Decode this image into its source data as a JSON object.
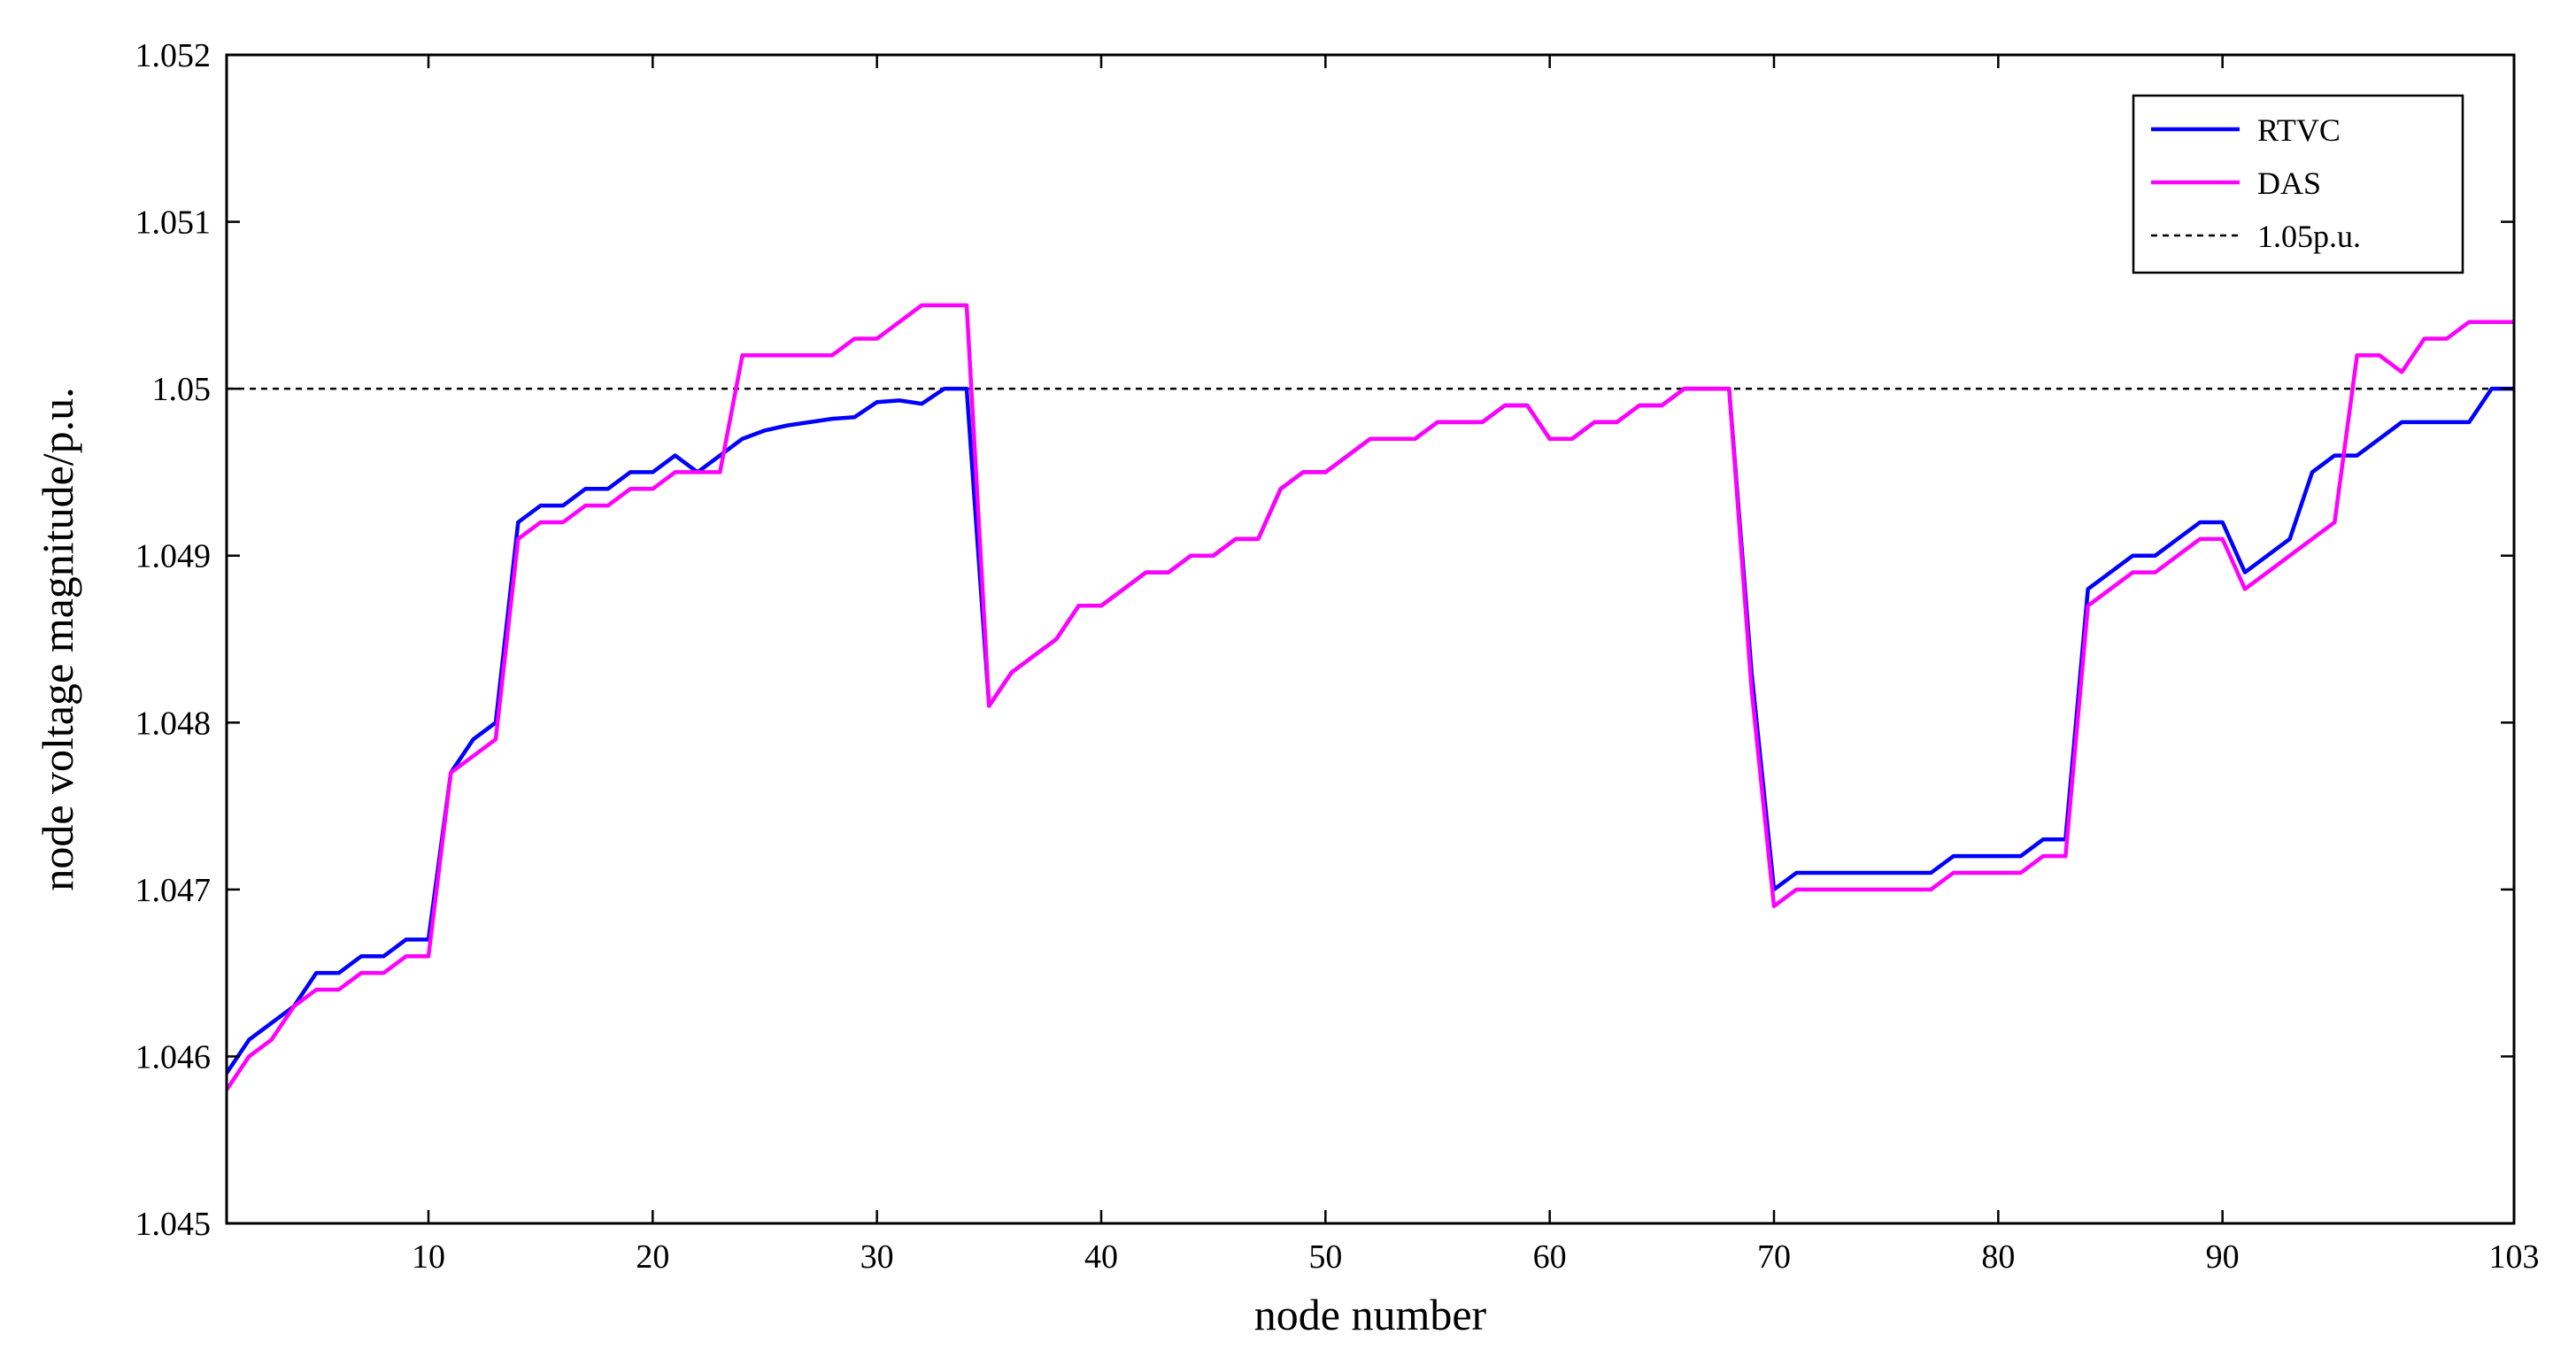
{
  "chart_data": {
    "type": "line",
    "title": "",
    "xlabel": "node number",
    "ylabel": "node voltage magnitude/p.u.",
    "xlim": [
      1,
      103
    ],
    "ylim": [
      1.045,
      1.052
    ],
    "x_ticks": [
      10,
      20,
      30,
      40,
      50,
      60,
      70,
      80,
      90,
      103
    ],
    "y_ticks": [
      "1.045",
      "1.046",
      "1.047",
      "1.048",
      "1.049",
      "1.05",
      "1.051",
      "1.052"
    ],
    "grid": false,
    "legend_position": "top-right",
    "series": [
      {
        "name": "RTVC",
        "color": "#0000ff",
        "style": "solid",
        "points": [
          [
            1,
            1.0459
          ],
          [
            2,
            1.0461
          ],
          [
            3,
            1.0462
          ],
          [
            4,
            1.0463
          ],
          [
            5,
            1.0465
          ],
          [
            6,
            1.0465
          ],
          [
            7,
            1.0466
          ],
          [
            8,
            1.0466
          ],
          [
            9,
            1.0467
          ],
          [
            10,
            1.0467
          ],
          [
            11,
            1.0477
          ],
          [
            12,
            1.0479
          ],
          [
            13,
            1.048
          ],
          [
            14,
            1.0492
          ],
          [
            15,
            1.0493
          ],
          [
            16,
            1.0493
          ],
          [
            17,
            1.0494
          ],
          [
            18,
            1.0494
          ],
          [
            19,
            1.0495
          ],
          [
            20,
            1.0495
          ],
          [
            21,
            1.0496
          ],
          [
            22,
            1.0495
          ],
          [
            23,
            1.0496
          ],
          [
            24,
            1.0497
          ],
          [
            25,
            1.04975
          ],
          [
            26,
            1.04978
          ],
          [
            27,
            1.0498
          ],
          [
            28,
            1.04982
          ],
          [
            29,
            1.04983
          ],
          [
            30,
            1.04992
          ],
          [
            31,
            1.04993
          ],
          [
            32,
            1.04991
          ],
          [
            33,
            1.05
          ],
          [
            34,
            1.05
          ],
          [
            35,
            1.0481
          ],
          [
            36,
            1.0483
          ],
          [
            37,
            1.0484
          ],
          [
            38,
            1.0485
          ],
          [
            39,
            1.0487
          ],
          [
            40,
            1.0487
          ],
          [
            41,
            1.0488
          ],
          [
            42,
            1.0489
          ],
          [
            43,
            1.0489
          ],
          [
            44,
            1.049
          ],
          [
            45,
            1.049
          ],
          [
            46,
            1.0491
          ],
          [
            47,
            1.0491
          ],
          [
            48,
            1.0494
          ],
          [
            49,
            1.0495
          ],
          [
            50,
            1.0495
          ],
          [
            51,
            1.0496
          ],
          [
            52,
            1.0497
          ],
          [
            53,
            1.0497
          ],
          [
            54,
            1.0497
          ],
          [
            55,
            1.0498
          ],
          [
            56,
            1.0498
          ],
          [
            57,
            1.0498
          ],
          [
            58,
            1.0499
          ],
          [
            59,
            1.0499
          ],
          [
            60,
            1.0497
          ],
          [
            61,
            1.0497
          ],
          [
            62,
            1.0498
          ],
          [
            63,
            1.0498
          ],
          [
            64,
            1.0499
          ],
          [
            65,
            1.0499
          ],
          [
            66,
            1.05
          ],
          [
            67,
            1.05
          ],
          [
            68,
            1.05
          ],
          [
            69,
            1.0483
          ],
          [
            70,
            1.047
          ],
          [
            71,
            1.0471
          ],
          [
            72,
            1.0471
          ],
          [
            73,
            1.0471
          ],
          [
            74,
            1.0471
          ],
          [
            75,
            1.0471
          ],
          [
            76,
            1.0471
          ],
          [
            77,
            1.0471
          ],
          [
            78,
            1.0472
          ],
          [
            79,
            1.0472
          ],
          [
            80,
            1.0472
          ],
          [
            81,
            1.0472
          ],
          [
            82,
            1.0473
          ],
          [
            83,
            1.0473
          ],
          [
            84,
            1.0488
          ],
          [
            85,
            1.0489
          ],
          [
            86,
            1.049
          ],
          [
            87,
            1.049
          ],
          [
            88,
            1.0491
          ],
          [
            89,
            1.0492
          ],
          [
            90,
            1.0492
          ],
          [
            91,
            1.0489
          ],
          [
            92,
            1.049
          ],
          [
            93,
            1.0491
          ],
          [
            94,
            1.0495
          ],
          [
            95,
            1.0496
          ],
          [
            96,
            1.0496
          ],
          [
            97,
            1.0497
          ],
          [
            98,
            1.0498
          ],
          [
            99,
            1.0498
          ],
          [
            100,
            1.0498
          ],
          [
            101,
            1.0498
          ],
          [
            102,
            1.05
          ],
          [
            103,
            1.05
          ]
        ]
      },
      {
        "name": "DAS",
        "color": "#ff00ff",
        "style": "solid",
        "points": [
          [
            1,
            1.0458
          ],
          [
            2,
            1.046
          ],
          [
            3,
            1.0461
          ],
          [
            4,
            1.0463
          ],
          [
            5,
            1.0464
          ],
          [
            6,
            1.0464
          ],
          [
            7,
            1.0465
          ],
          [
            8,
            1.0465
          ],
          [
            9,
            1.0466
          ],
          [
            10,
            1.0466
          ],
          [
            11,
            1.0477
          ],
          [
            12,
            1.0478
          ],
          [
            13,
            1.0479
          ],
          [
            14,
            1.0491
          ],
          [
            15,
            1.0492
          ],
          [
            16,
            1.0492
          ],
          [
            17,
            1.0493
          ],
          [
            18,
            1.0493
          ],
          [
            19,
            1.0494
          ],
          [
            20,
            1.0494
          ],
          [
            21,
            1.0495
          ],
          [
            22,
            1.0495
          ],
          [
            23,
            1.0495
          ],
          [
            24,
            1.0502
          ],
          [
            25,
            1.0502
          ],
          [
            26,
            1.0502
          ],
          [
            27,
            1.0502
          ],
          [
            28,
            1.0502
          ],
          [
            29,
            1.0503
          ],
          [
            30,
            1.0503
          ],
          [
            31,
            1.0504
          ],
          [
            32,
            1.0505
          ],
          [
            33,
            1.0505
          ],
          [
            34,
            1.0505
          ],
          [
            35,
            1.0481
          ],
          [
            36,
            1.0483
          ],
          [
            37,
            1.0484
          ],
          [
            38,
            1.0485
          ],
          [
            39,
            1.0487
          ],
          [
            40,
            1.0487
          ],
          [
            41,
            1.0488
          ],
          [
            42,
            1.0489
          ],
          [
            43,
            1.0489
          ],
          [
            44,
            1.049
          ],
          [
            45,
            1.049
          ],
          [
            46,
            1.0491
          ],
          [
            47,
            1.0491
          ],
          [
            48,
            1.0494
          ],
          [
            49,
            1.0495
          ],
          [
            50,
            1.0495
          ],
          [
            51,
            1.0496
          ],
          [
            52,
            1.0497
          ],
          [
            53,
            1.0497
          ],
          [
            54,
            1.0497
          ],
          [
            55,
            1.0498
          ],
          [
            56,
            1.0498
          ],
          [
            57,
            1.0498
          ],
          [
            58,
            1.0499
          ],
          [
            59,
            1.0499
          ],
          [
            60,
            1.0497
          ],
          [
            61,
            1.0497
          ],
          [
            62,
            1.0498
          ],
          [
            63,
            1.0498
          ],
          [
            64,
            1.0499
          ],
          [
            65,
            1.0499
          ],
          [
            66,
            1.05
          ],
          [
            67,
            1.05
          ],
          [
            68,
            1.05
          ],
          [
            69,
            1.0482
          ],
          [
            70,
            1.0469
          ],
          [
            71,
            1.047
          ],
          [
            72,
            1.047
          ],
          [
            73,
            1.047
          ],
          [
            74,
            1.047
          ],
          [
            75,
            1.047
          ],
          [
            76,
            1.047
          ],
          [
            77,
            1.047
          ],
          [
            78,
            1.0471
          ],
          [
            79,
            1.0471
          ],
          [
            80,
            1.0471
          ],
          [
            81,
            1.0471
          ],
          [
            82,
            1.0472
          ],
          [
            83,
            1.0472
          ],
          [
            84,
            1.0487
          ],
          [
            85,
            1.0488
          ],
          [
            86,
            1.0489
          ],
          [
            87,
            1.0489
          ],
          [
            88,
            1.049
          ],
          [
            89,
            1.0491
          ],
          [
            90,
            1.0491
          ],
          [
            91,
            1.0488
          ],
          [
            92,
            1.0489
          ],
          [
            93,
            1.049
          ],
          [
            94,
            1.0491
          ],
          [
            95,
            1.0492
          ],
          [
            96,
            1.0502
          ],
          [
            97,
            1.0502
          ],
          [
            98,
            1.0501
          ],
          [
            99,
            1.0503
          ],
          [
            100,
            1.0503
          ],
          [
            101,
            1.0504
          ],
          [
            102,
            1.0504
          ],
          [
            103,
            1.0504
          ]
        ]
      },
      {
        "name": "1.05p.u.",
        "color": "#000000",
        "style": "dashed",
        "points": [
          [
            1,
            1.05
          ],
          [
            103,
            1.05
          ]
        ]
      }
    ]
  }
}
